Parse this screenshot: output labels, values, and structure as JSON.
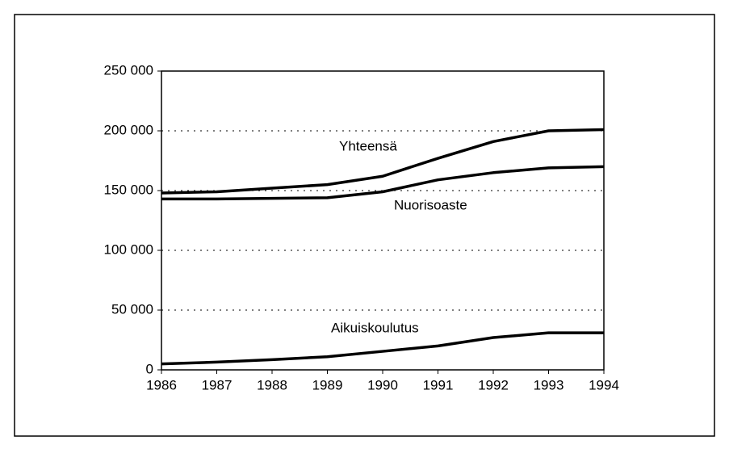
{
  "chart_data": {
    "type": "line",
    "x": [
      1986,
      1987,
      1988,
      1989,
      1990,
      1991,
      1992,
      1993,
      1994
    ],
    "series": [
      {
        "name": "Yhteensä",
        "color": "#000000",
        "values": [
          148000,
          149000,
          152000,
          155000,
          162000,
          177000,
          191000,
          200000,
          201000
        ]
      },
      {
        "name": "Nuorisoaste",
        "color": "#000000",
        "values": [
          143000,
          143000,
          143500,
          144000,
          149000,
          159000,
          165000,
          169000,
          170000
        ]
      },
      {
        "name": "Aikuiskoulutus",
        "color": "#000000",
        "values": [
          5000,
          6500,
          8500,
          11000,
          15500,
          20000,
          27000,
          31000,
          31000
        ]
      }
    ],
    "xlim": [
      1986,
      1994
    ],
    "xticks": [
      1986,
      1987,
      1988,
      1989,
      1990,
      1991,
      1992,
      1993,
      1994
    ],
    "ylim": [
      0,
      250000
    ],
    "yticks": [
      0,
      {
        "value": 50000,
        "label": "50 000"
      },
      {
        "value": 100000,
        "label": "100 000"
      },
      {
        "value": 150000,
        "label": "150 000"
      },
      {
        "value": 200000,
        "label": "200 000"
      },
      {
        "value": 250000,
        "label": "250 000"
      }
    ],
    "grid": true
  }
}
